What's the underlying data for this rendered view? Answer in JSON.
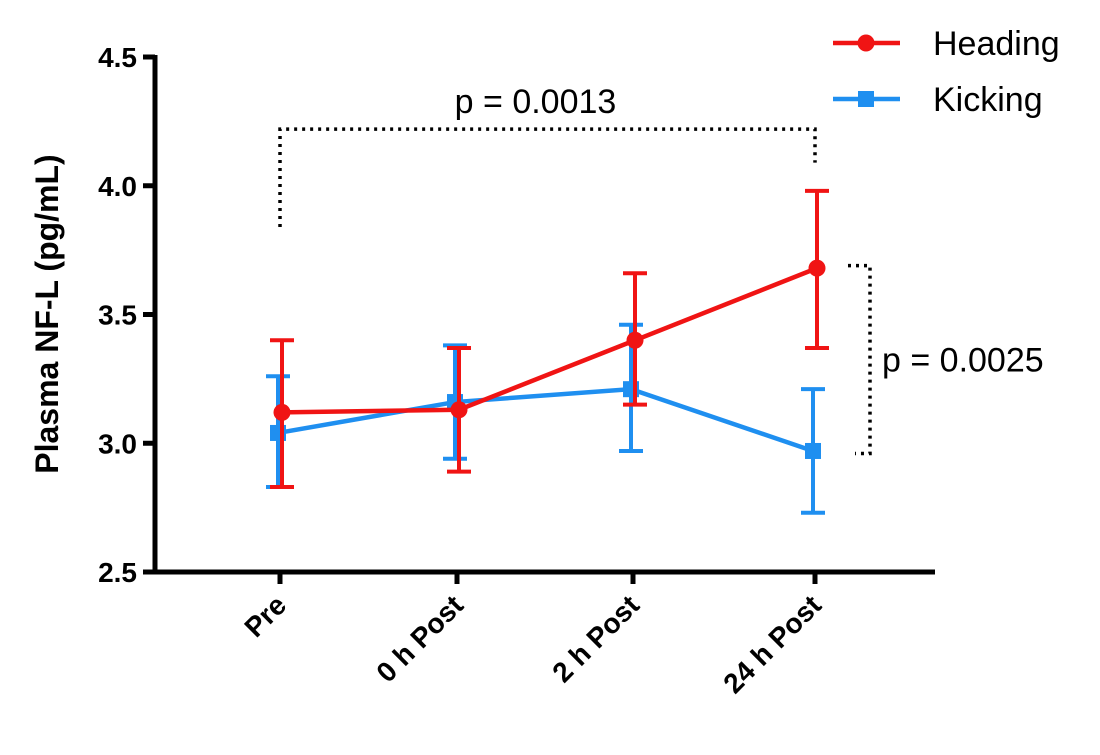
{
  "chart_data": {
    "type": "line",
    "title": "",
    "xlabel": "",
    "ylabel": "Plasma NF-L (pg/mL)",
    "categories": [
      "Pre",
      "0 h Post",
      "2 h Post",
      "24 h Post"
    ],
    "ylim": [
      2.5,
      4.5
    ],
    "yticks": [
      "2.5",
      "3.0",
      "3.5",
      "4.0",
      "4.5"
    ],
    "grid": false,
    "legend_position": "top-right",
    "series": [
      {
        "name": "Heading",
        "color": "#f01414",
        "marker": "circle",
        "values": [
          3.12,
          3.13,
          3.4,
          3.68
        ],
        "error_low": [
          2.83,
          2.89,
          3.15,
          3.37
        ],
        "error_high": [
          3.4,
          3.37,
          3.66,
          3.98
        ]
      },
      {
        "name": "Kicking",
        "color": "#1f8ff0",
        "marker": "square",
        "values": [
          3.04,
          3.16,
          3.21,
          2.97
        ],
        "error_low": [
          2.83,
          2.94,
          2.97,
          2.73
        ],
        "error_high": [
          3.26,
          3.38,
          3.46,
          3.21
        ]
      }
    ],
    "annotations": [
      {
        "text": "p = 0.0013",
        "from": "Pre",
        "to": "24 h Post",
        "y": 4.22
      },
      {
        "text": "p = 0.0025",
        "at": "24 h Post",
        "y_from": 2.96,
        "y_to": 3.69
      }
    ]
  }
}
